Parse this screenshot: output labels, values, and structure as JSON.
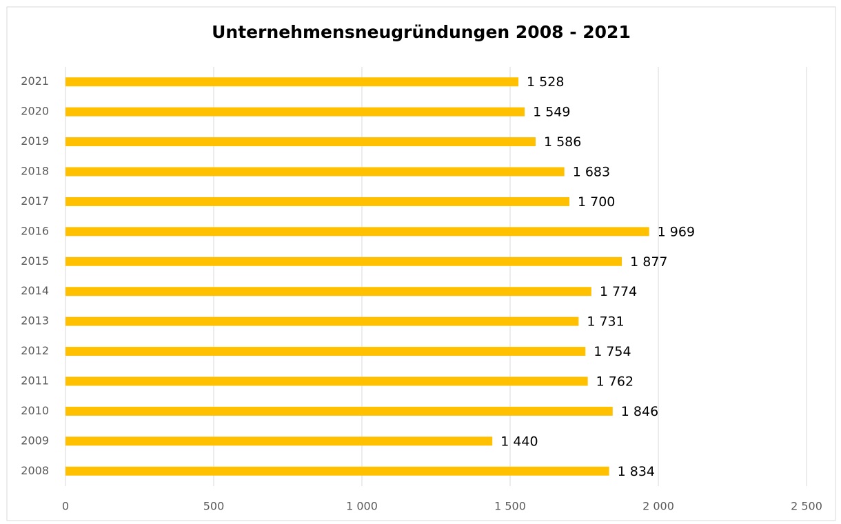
{
  "chart_data": {
    "type": "bar",
    "orientation": "horizontal",
    "title": "Unternehmensneugründungen 2008 - 2021",
    "categories": [
      "2008",
      "2009",
      "2010",
      "2011",
      "2012",
      "2013",
      "2014",
      "2015",
      "2016",
      "2017",
      "2018",
      "2019",
      "2020",
      "2021"
    ],
    "values": [
      1834,
      1440,
      1846,
      1762,
      1754,
      1731,
      1774,
      1877,
      1969,
      1700,
      1683,
      1586,
      1549,
      1528
    ],
    "value_labels": [
      "1 834",
      "1 440",
      "1 846",
      "1 762",
      "1 754",
      "1 731",
      "1 774",
      "1 877",
      "1 969",
      "1 700",
      "1 683",
      "1 586",
      "1 549",
      "1 528"
    ],
    "color": "#ffc000",
    "xlim": [
      0,
      2500
    ],
    "xticks": [
      0,
      500,
      {
        "value": 1000,
        "label": "1 000"
      },
      {
        "value": 1500,
        "label": "1 500"
      },
      {
        "value": 2000,
        "label": "2 000"
      },
      {
        "value": 2500,
        "label": "2 500"
      }
    ],
    "grid": true
  }
}
